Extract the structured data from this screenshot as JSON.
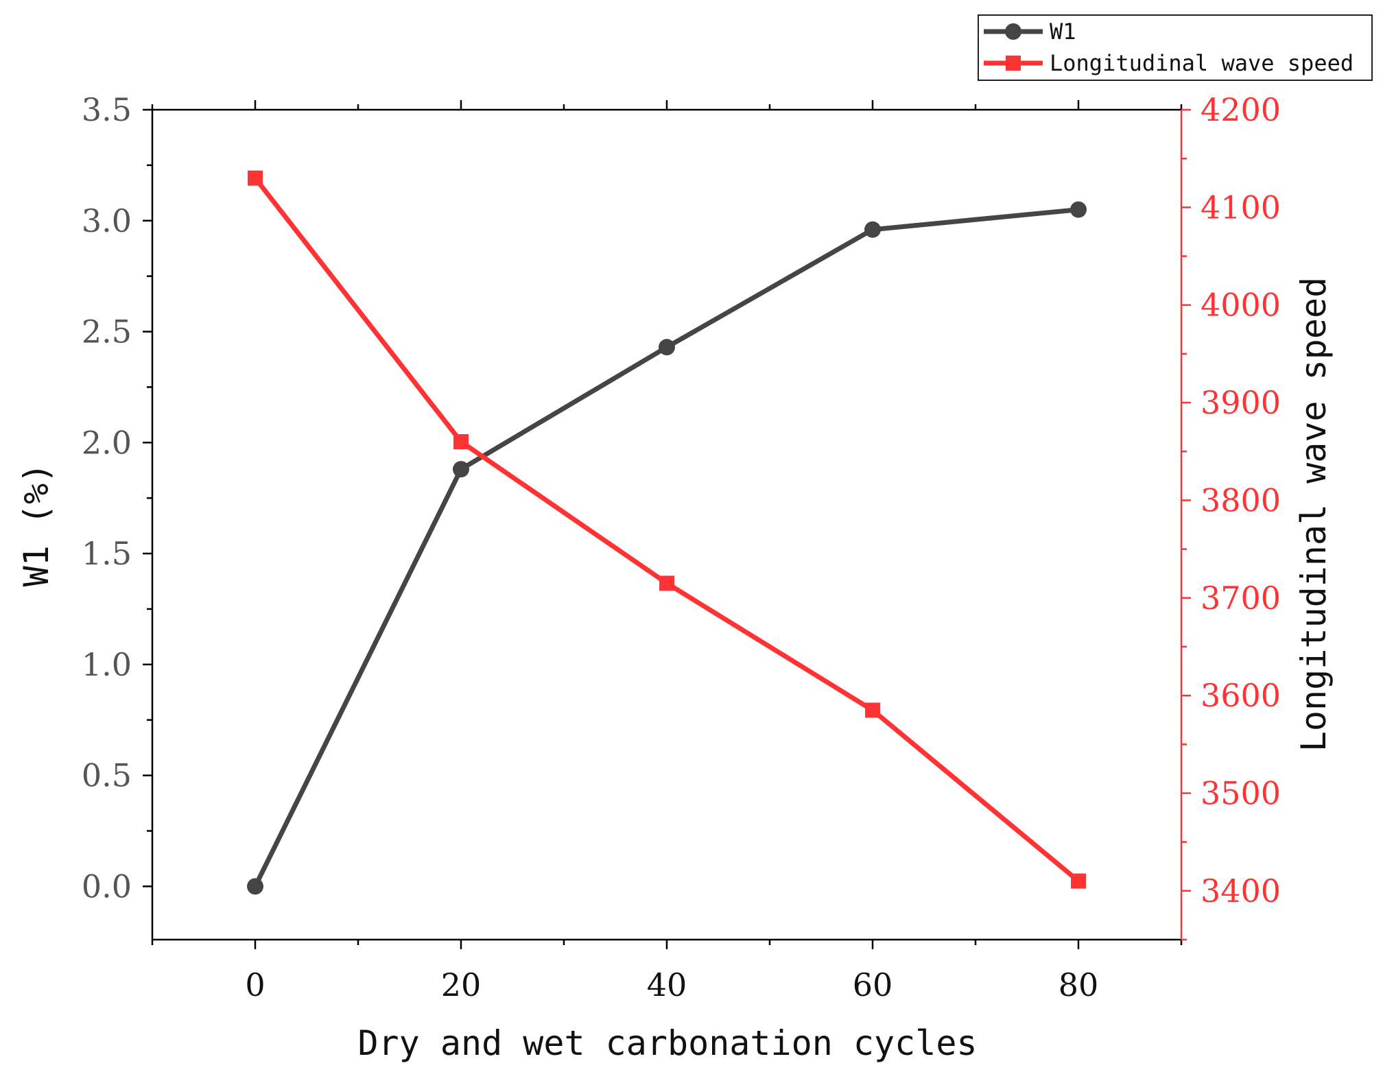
{
  "chart_data": {
    "type": "line",
    "title": "",
    "xlabel": "Dry and wet carbonation cycles",
    "ylabel_left": "W1 (%)",
    "ylabel_right": "Longitudinal wave speed",
    "x": [
      0,
      20,
      40,
      60,
      80
    ],
    "xlim": [
      -10,
      90
    ],
    "x_ticks": [
      "0",
      "20",
      "40",
      "60",
      "80"
    ],
    "ylim_left": [
      -0.24,
      3.5
    ],
    "ylim_right": [
      3350,
      4200
    ],
    "y_ticks_left": [
      "0.0",
      "0.5",
      "1.0",
      "1.5",
      "2.0",
      "2.5",
      "3.0",
      "3.5"
    ],
    "y_ticks_right": [
      "3400",
      "3500",
      "3600",
      "3700",
      "3800",
      "3900",
      "4000",
      "4100",
      "4200"
    ],
    "legend_position": "top-right",
    "series": [
      {
        "name": "W1",
        "axis": "left",
        "marker": "circle",
        "color": "#454545",
        "values": [
          0.0,
          1.88,
          2.43,
          2.96,
          3.05
        ]
      },
      {
        "name": "Longitudinal wave speed",
        "axis": "right",
        "marker": "square",
        "color": "#ff3333",
        "values": [
          4130,
          3860,
          3715,
          3585,
          3410
        ]
      }
    ],
    "right_axis_color": "#ff3333",
    "grid": false
  }
}
